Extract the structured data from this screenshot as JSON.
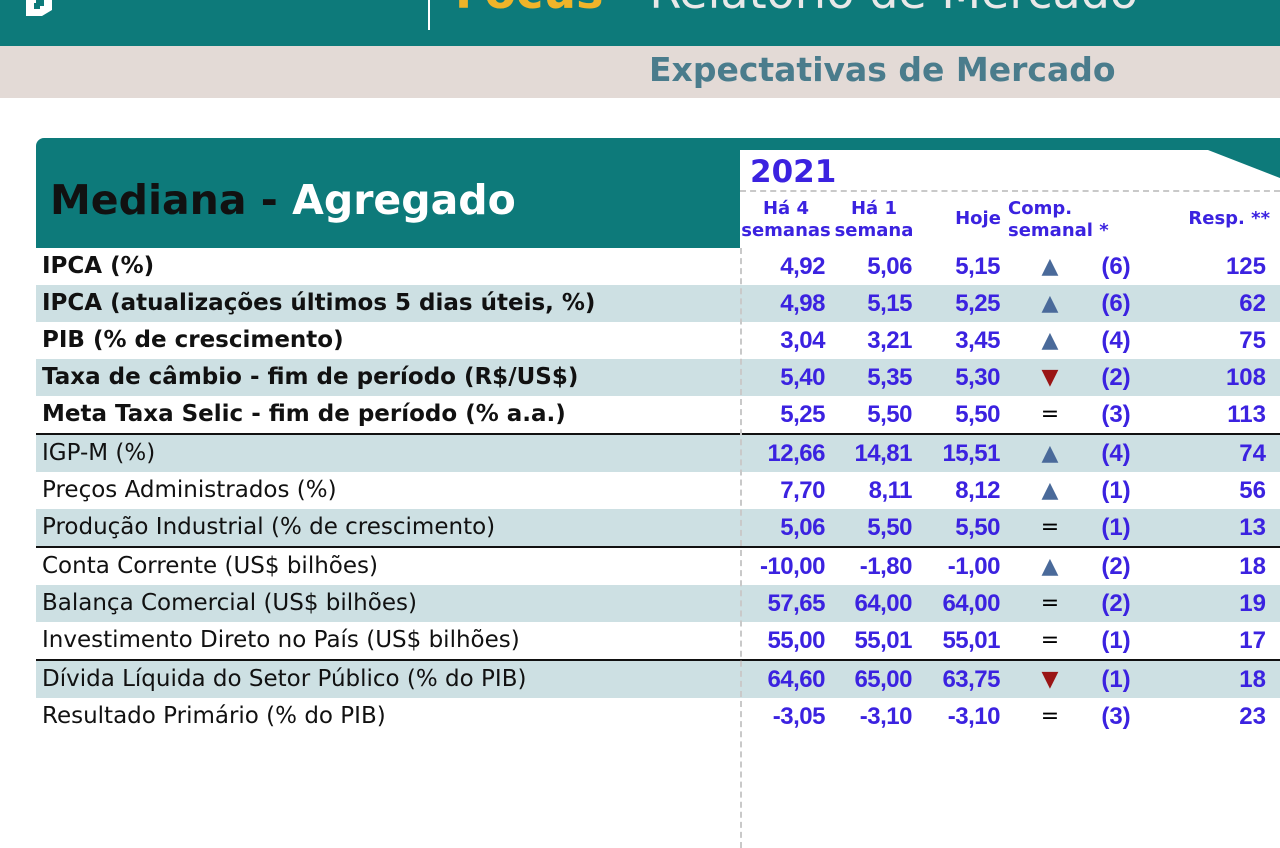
{
  "header": {
    "top_title_accent": "Focus",
    "top_title_rest": " - Relatório de Mercado",
    "subtitle": "Expectativas de Mercado"
  },
  "table": {
    "title_dark": "Mediana - ",
    "title_light": "Agregado",
    "year": "2021",
    "columns": {
      "four_weeks": [
        "Há 4",
        "semanas"
      ],
      "one_week": [
        "Há 1",
        "semana"
      ],
      "today": "Hoje",
      "weekly_comp": [
        "Comp.",
        "semanal *"
      ],
      "resp": "Resp. **"
    },
    "rows": [
      {
        "label": "IPCA (%)",
        "v4": "4,92",
        "v1": "5,06",
        "vh": "5,15",
        "trend": "up",
        "count": "(6)",
        "resp": "125"
      },
      {
        "label": "IPCA (atualizações últimos 5 dias úteis, %)",
        "v4": "4,98",
        "v1": "5,15",
        "vh": "5,25",
        "trend": "up",
        "count": "(6)",
        "resp": "62"
      },
      {
        "label": "PIB (% de crescimento)",
        "v4": "3,04",
        "v1": "3,21",
        "vh": "3,45",
        "trend": "up",
        "count": "(4)",
        "resp": "75"
      },
      {
        "label": "Taxa de câmbio - fim de período (R$/US$)",
        "v4": "5,40",
        "v1": "5,35",
        "vh": "5,30",
        "trend": "down",
        "count": "(2)",
        "resp": "108"
      },
      {
        "label": "Meta Taxa Selic - fim de período (% a.a.)",
        "v4": "5,25",
        "v1": "5,50",
        "vh": "5,50",
        "trend": "equal",
        "count": "(3)",
        "resp": "113"
      },
      {
        "label": "IGP-M (%)",
        "v4": "12,66",
        "v1": "14,81",
        "vh": "15,51",
        "trend": "up",
        "count": "(4)",
        "resp": "74"
      },
      {
        "label": "Preços Administrados (%)",
        "v4": "7,70",
        "v1": "8,11",
        "vh": "8,12",
        "trend": "up",
        "count": "(1)",
        "resp": "56"
      },
      {
        "label": "Produção Industrial (% de crescimento)",
        "v4": "5,06",
        "v1": "5,50",
        "vh": "5,50",
        "trend": "equal",
        "count": "(1)",
        "resp": "13"
      },
      {
        "label": "Conta Corrente (US$ bilhões)",
        "v4": "-10,00",
        "v1": "-1,80",
        "vh": "-1,00",
        "trend": "up",
        "count": "(2)",
        "resp": "18"
      },
      {
        "label": "Balança Comercial (US$ bilhões)",
        "v4": "57,65",
        "v1": "64,00",
        "vh": "64,00",
        "trend": "equal",
        "count": "(2)",
        "resp": "19"
      },
      {
        "label": "Investimento Direto no País (US$ bilhões)",
        "v4": "55,00",
        "v1": "55,01",
        "vh": "55,01",
        "trend": "equal",
        "count": "(1)",
        "resp": "17"
      },
      {
        "label": "Dívida Líquida do Setor Público (% do PIB)",
        "v4": "64,60",
        "v1": "65,00",
        "vh": "63,75",
        "trend": "down",
        "count": "(1)",
        "resp": "18"
      },
      {
        "label": "Resultado Primário (% do PIB)",
        "v4": "-3,05",
        "v1": "-3,10",
        "vh": "-3,10",
        "trend": "equal",
        "count": "(3)",
        "resp": "23"
      }
    ]
  },
  "colors": {
    "teal": "#0d7a7a",
    "band": "#e3dad6",
    "row_shade": "#cde0e3",
    "value_blue": "#3b22e0",
    "up": "#4a6a9a",
    "down": "#9a1515",
    "equal": "#1aa0b8"
  }
}
